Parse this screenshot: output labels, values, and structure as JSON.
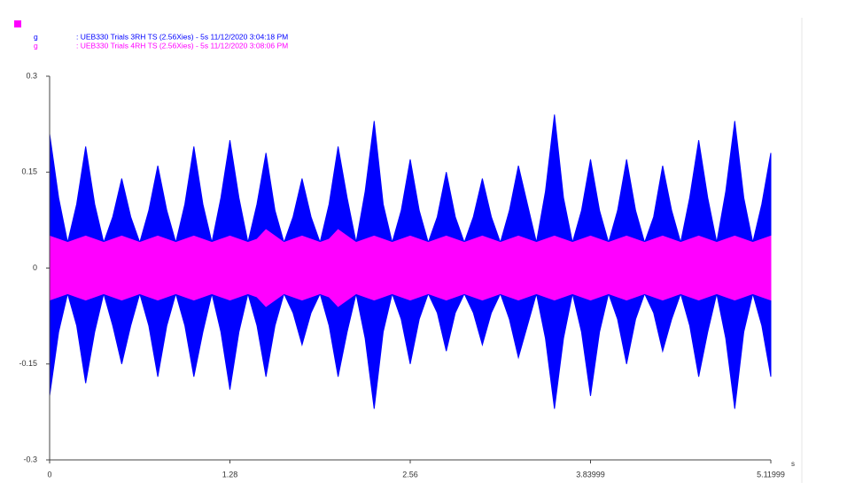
{
  "chart_data": {
    "type": "band",
    "x_unit": "s",
    "x": [
      0,
      0.064,
      0.128,
      0.192,
      0.256,
      0.32,
      0.384,
      0.448,
      0.512,
      0.576,
      0.64,
      0.704,
      0.768,
      0.832,
      0.896,
      0.96,
      1.024,
      1.088,
      1.152,
      1.216,
      1.28,
      1.344,
      1.408,
      1.472,
      1.536,
      1.6,
      1.664,
      1.728,
      1.792,
      1.856,
      1.92,
      1.984,
      2.048,
      2.112,
      2.176,
      2.24,
      2.304,
      2.368,
      2.432,
      2.496,
      2.56,
      2.624,
      2.688,
      2.752,
      2.816,
      2.88,
      2.944,
      3.008,
      3.072,
      3.136,
      3.2,
      3.264,
      3.328,
      3.392,
      3.456,
      3.52,
      3.584,
      3.648,
      3.712,
      3.776,
      3.84,
      3.904,
      3.968,
      4.032,
      4.096,
      4.16,
      4.224,
      4.288,
      4.352,
      4.416,
      4.48,
      4.544,
      4.608,
      4.672,
      4.736,
      4.8,
      4.864,
      4.928,
      4.992,
      5.056,
      5.11999
    ],
    "series": [
      {
        "unit": "g",
        "name": ": UEB330 Trials 3RH TS (2.56Xies) - 5s 11/12/2020 3:04:18 PM",
        "color": "#0000ff",
        "max": [
          0.21,
          0.11,
          0.04,
          0.1,
          0.19,
          0.1,
          0.04,
          0.08,
          0.14,
          0.08,
          0.04,
          0.09,
          0.16,
          0.09,
          0.04,
          0.1,
          0.19,
          0.1,
          0.04,
          0.11,
          0.2,
          0.11,
          0.04,
          0.1,
          0.18,
          0.09,
          0.04,
          0.08,
          0.14,
          0.08,
          0.04,
          0.1,
          0.19,
          0.11,
          0.04,
          0.12,
          0.23,
          0.1,
          0.04,
          0.09,
          0.17,
          0.09,
          0.04,
          0.08,
          0.15,
          0.08,
          0.04,
          0.08,
          0.14,
          0.08,
          0.04,
          0.09,
          0.16,
          0.1,
          0.04,
          0.12,
          0.24,
          0.11,
          0.04,
          0.09,
          0.17,
          0.09,
          0.04,
          0.09,
          0.17,
          0.09,
          0.04,
          0.08,
          0.16,
          0.09,
          0.04,
          0.11,
          0.2,
          0.11,
          0.04,
          0.12,
          0.23,
          0.11,
          0.04,
          0.1,
          0.18
        ],
        "min": [
          -0.2,
          -0.1,
          -0.04,
          -0.09,
          -0.18,
          -0.1,
          -0.04,
          -0.09,
          -0.15,
          -0.09,
          -0.04,
          -0.09,
          -0.17,
          -0.09,
          -0.04,
          -0.09,
          -0.17,
          -0.1,
          -0.04,
          -0.1,
          -0.19,
          -0.1,
          -0.04,
          -0.09,
          -0.17,
          -0.09,
          -0.04,
          -0.07,
          -0.12,
          -0.07,
          -0.04,
          -0.09,
          -0.17,
          -0.1,
          -0.04,
          -0.11,
          -0.22,
          -0.1,
          -0.04,
          -0.08,
          -0.15,
          -0.08,
          -0.04,
          -0.07,
          -0.13,
          -0.07,
          -0.04,
          -0.07,
          -0.12,
          -0.07,
          -0.04,
          -0.08,
          -0.14,
          -0.09,
          -0.04,
          -0.11,
          -0.22,
          -0.11,
          -0.04,
          -0.1,
          -0.2,
          -0.1,
          -0.04,
          -0.08,
          -0.15,
          -0.08,
          -0.04,
          -0.07,
          -0.13,
          -0.08,
          -0.04,
          -0.09,
          -0.17,
          -0.1,
          -0.04,
          -0.11,
          -0.22,
          -0.1,
          -0.04,
          -0.09,
          -0.17
        ]
      },
      {
        "unit": "g",
        "name": ": UEB330 Trials 4RH TS (2.56Xies) - 5s 11/12/2020 3:08:06 PM",
        "color": "#ff00ff",
        "max": [
          0.05,
          0.045,
          0.04,
          0.045,
          0.05,
          0.045,
          0.04,
          0.045,
          0.05,
          0.045,
          0.04,
          0.045,
          0.05,
          0.045,
          0.04,
          0.045,
          0.05,
          0.045,
          0.04,
          0.045,
          0.05,
          0.045,
          0.04,
          0.045,
          0.06,
          0.05,
          0.04,
          0.045,
          0.05,
          0.045,
          0.04,
          0.045,
          0.06,
          0.05,
          0.04,
          0.045,
          0.05,
          0.045,
          0.04,
          0.045,
          0.05,
          0.045,
          0.04,
          0.045,
          0.05,
          0.045,
          0.04,
          0.045,
          0.05,
          0.045,
          0.04,
          0.045,
          0.05,
          0.045,
          0.04,
          0.045,
          0.05,
          0.045,
          0.04,
          0.045,
          0.05,
          0.045,
          0.04,
          0.045,
          0.05,
          0.045,
          0.04,
          0.045,
          0.05,
          0.045,
          0.04,
          0.045,
          0.05,
          0.045,
          0.04,
          0.045,
          0.05,
          0.045,
          0.04,
          0.045,
          0.05
        ],
        "min": [
          -0.05,
          -0.045,
          -0.04,
          -0.045,
          -0.05,
          -0.045,
          -0.04,
          -0.045,
          -0.05,
          -0.045,
          -0.04,
          -0.045,
          -0.05,
          -0.045,
          -0.04,
          -0.045,
          -0.05,
          -0.045,
          -0.04,
          -0.045,
          -0.05,
          -0.045,
          -0.04,
          -0.045,
          -0.06,
          -0.05,
          -0.04,
          -0.045,
          -0.05,
          -0.045,
          -0.04,
          -0.045,
          -0.06,
          -0.05,
          -0.04,
          -0.045,
          -0.05,
          -0.045,
          -0.04,
          -0.045,
          -0.05,
          -0.045,
          -0.04,
          -0.045,
          -0.05,
          -0.045,
          -0.04,
          -0.045,
          -0.05,
          -0.045,
          -0.04,
          -0.045,
          -0.05,
          -0.045,
          -0.04,
          -0.045,
          -0.05,
          -0.045,
          -0.04,
          -0.045,
          -0.05,
          -0.045,
          -0.04,
          -0.045,
          -0.05,
          -0.045,
          -0.04,
          -0.045,
          -0.05,
          -0.045,
          -0.04,
          -0.045,
          -0.05,
          -0.045,
          -0.04,
          -0.045,
          -0.05,
          -0.045,
          -0.04,
          -0.045,
          -0.05
        ]
      }
    ],
    "xlim": [
      0,
      5.11999
    ],
    "xticks": [
      0,
      1.28,
      2.56,
      3.83999,
      5.11999
    ],
    "ylim": [
      -0.3,
      0.3
    ],
    "yticks": [
      0.3,
      0.15,
      0,
      -0.15,
      -0.3
    ],
    "grid": false
  }
}
